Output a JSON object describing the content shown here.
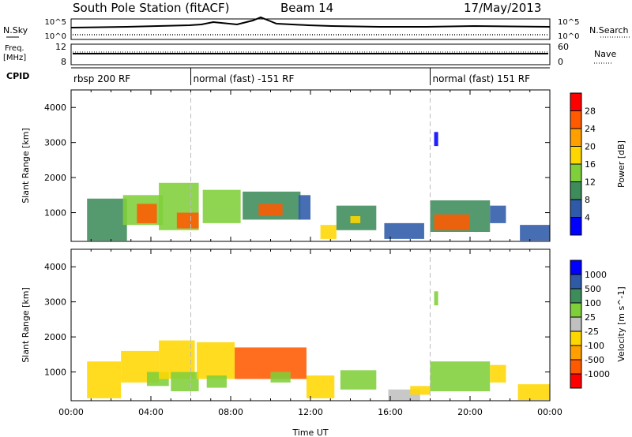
{
  "header": {
    "station": "South Pole Station (fitACF)",
    "beam": "Beam 14",
    "date": "17/May/2013"
  },
  "top_panels": {
    "nsky_label": "N.Sky",
    "nsearch_label": "N.Search",
    "freq_label_1": "Freq.",
    "freq_label_2": "[MHz]",
    "nave_label": "Nave",
    "cpid_label": "CPID",
    "left_ticks_1": [
      "10^5",
      "10^0"
    ],
    "right_ticks_1": [
      "10^5",
      "10^0"
    ],
    "left_ticks_2": [
      "12",
      "8"
    ],
    "right_ticks_2": [
      "60",
      "0"
    ],
    "cpid_segments": [
      {
        "label": "rbsp 200 RF",
        "start_hour": 0
      },
      {
        "label": "normal (fast) -151 RF",
        "start_hour": 6
      },
      {
        "label": "normal (fast) 151 RF",
        "start_hour": 18
      }
    ]
  },
  "colors": {
    "power": [
      "#0000ff",
      "#2e5aa8",
      "#3d8c5a",
      "#7fcf3a",
      "#ffd700",
      "#ff9f00",
      "#ff5a00",
      "#ff0000"
    ],
    "velocity": [
      "#ff0000",
      "#ff5a00",
      "#ff9f00",
      "#ffd700",
      "#c0c0c0",
      "#7fcf3a",
      "#3d8c5a",
      "#2e5aa8",
      "#0000ff"
    ]
  },
  "chart_data": [
    {
      "type": "heatmap",
      "title": "",
      "xlabel": "",
      "ylabel": "Slant Range [km]",
      "xlim": [
        0,
        24
      ],
      "ylim": [
        180,
        4500
      ],
      "x_ticks": [],
      "y_ticks": [
        "1000",
        "2000",
        "3000",
        "4000"
      ],
      "colorbar_label": "Power [dB]",
      "colorbar_ticks": [
        "4",
        "8",
        "12",
        "16",
        "20",
        "24",
        "28"
      ],
      "value_range": [
        0,
        32
      ],
      "cells": [
        {
          "x": [
            0.8,
            2.8
          ],
          "y": [
            200,
            1400
          ],
          "v": 8
        },
        {
          "x": [
            2.6,
            4.6
          ],
          "y": [
            650,
            1500
          ],
          "v": 14
        },
        {
          "x": [
            3.3,
            4.3
          ],
          "y": [
            700,
            1250
          ],
          "v": 27
        },
        {
          "x": [
            4.4,
            6.4
          ],
          "y": [
            500,
            1850
          ],
          "v": 12
        },
        {
          "x": [
            5.3,
            6.4
          ],
          "y": [
            550,
            1000
          ],
          "v": 26
        },
        {
          "x": [
            6.6,
            8.5
          ],
          "y": [
            700,
            1650
          ],
          "v": 12
        },
        {
          "x": [
            8.6,
            11.5
          ],
          "y": [
            800,
            1600
          ],
          "v": 10
        },
        {
          "x": [
            9.4,
            10.6
          ],
          "y": [
            900,
            1250
          ],
          "v": 26
        },
        {
          "x": [
            11.4,
            12.0
          ],
          "y": [
            800,
            1500
          ],
          "v": 7
        },
        {
          "x": [
            12.5,
            13.3
          ],
          "y": [
            250,
            650
          ],
          "v": 18
        },
        {
          "x": [
            13.3,
            15.3
          ],
          "y": [
            500,
            1200
          ],
          "v": 10
        },
        {
          "x": [
            14.0,
            14.5
          ],
          "y": [
            700,
            900
          ],
          "v": 18
        },
        {
          "x": [
            15.7,
            17.7
          ],
          "y": [
            250,
            700
          ],
          "v": 6
        },
        {
          "x": [
            18.0,
            21.0
          ],
          "y": [
            450,
            1350
          ],
          "v": 11
        },
        {
          "x": [
            18.2,
            20.0
          ],
          "y": [
            500,
            950
          ],
          "v": 27
        },
        {
          "x": [
            21.0,
            21.8
          ],
          "y": [
            700,
            1200
          ],
          "v": 6
        },
        {
          "x": [
            22.5,
            24.0
          ],
          "y": [
            200,
            650
          ],
          "v": 6
        },
        {
          "x": [
            18.2,
            18.4
          ],
          "y": [
            2900,
            3300
          ],
          "v": 3
        }
      ]
    },
    {
      "type": "heatmap",
      "title": "",
      "xlabel": "Time UT",
      "ylabel": "Slant Range [km]",
      "xlim": [
        0,
        24
      ],
      "ylim": [
        180,
        4500
      ],
      "x_ticks": [
        "00:00",
        "04:00",
        "08:00",
        "12:00",
        "16:00",
        "20:00",
        "00:00"
      ],
      "y_ticks": [
        "1000",
        "2000",
        "3000",
        "4000"
      ],
      "colorbar_label": "Velocity [m s^-1]",
      "colorbar_ticks": [
        "1000",
        "500",
        "100",
        "25",
        "-25",
        "-100",
        "-500",
        "-1000"
      ],
      "value_range": [
        -1200,
        1200
      ],
      "cells": [
        {
          "x": [
            0.8,
            2.5
          ],
          "y": [
            250,
            1300
          ],
          "v": 150
        },
        {
          "x": [
            2.5,
            4.4
          ],
          "y": [
            700,
            1600
          ],
          "v": 300
        },
        {
          "x": [
            3.8,
            4.9
          ],
          "y": [
            600,
            1000
          ],
          "v": -150
        },
        {
          "x": [
            4.4,
            6.2
          ],
          "y": [
            800,
            1900
          ],
          "v": 250
        },
        {
          "x": [
            5.0,
            6.4
          ],
          "y": [
            450,
            1000
          ],
          "v": -200
        },
        {
          "x": [
            6.3,
            8.2
          ],
          "y": [
            800,
            1850
          ],
          "v": 350
        },
        {
          "x": [
            6.8,
            7.8
          ],
          "y": [
            550,
            900
          ],
          "v": -300
        },
        {
          "x": [
            8.2,
            11.8
          ],
          "y": [
            800,
            1700
          ],
          "v": 700
        },
        {
          "x": [
            10.0,
            11.0
          ],
          "y": [
            700,
            1000
          ],
          "v": -150
        },
        {
          "x": [
            11.8,
            13.2
          ],
          "y": [
            250,
            900
          ],
          "v": 200
        },
        {
          "x": [
            13.5,
            15.3
          ],
          "y": [
            500,
            1050
          ],
          "v": -200
        },
        {
          "x": [
            15.9,
            17.5
          ],
          "y": [
            180,
            500
          ],
          "v": 0
        },
        {
          "x": [
            17.0,
            18.0
          ],
          "y": [
            350,
            600
          ],
          "v": 200
        },
        {
          "x": [
            18.0,
            21.0
          ],
          "y": [
            450,
            1300
          ],
          "v": -200
        },
        {
          "x": [
            21.0,
            21.8
          ],
          "y": [
            700,
            1200
          ],
          "v": 300
        },
        {
          "x": [
            22.4,
            24.0
          ],
          "y": [
            200,
            650
          ],
          "v": 200
        },
        {
          "x": [
            18.2,
            18.4
          ],
          "y": [
            2900,
            3300
          ],
          "v": -150
        }
      ]
    }
  ]
}
